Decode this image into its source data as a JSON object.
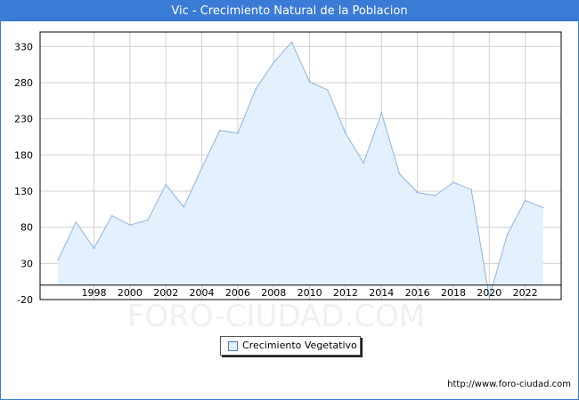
{
  "title": "Vic - Crecimiento Natural de la Poblacion",
  "watermark": "FORO-CIUDAD.COM",
  "source_url": "http://www.foro-ciudad.com",
  "colors": {
    "title_bg": "#3a7bd5",
    "area_fill": "#e3f0fd",
    "line": "#8fb4e3",
    "grid": "#d0d0d0"
  },
  "chart_data": {
    "type": "area",
    "title": "Vic - Crecimiento Natural de la Poblacion",
    "xlabel": "",
    "ylabel": "",
    "xlim": [
      1995,
      2024
    ],
    "ylim": [
      -20,
      350
    ],
    "y_ticks": [
      -20,
      30,
      80,
      130,
      180,
      230,
      280,
      330
    ],
    "x_ticks": [
      1998,
      2000,
      2002,
      2004,
      2006,
      2008,
      2010,
      2012,
      2014,
      2016,
      2018,
      2020,
      2022
    ],
    "grid": true,
    "legend_position": "bottom-center",
    "series": [
      {
        "name": "Crecimiento Vegetativo",
        "x": [
          1996,
          1997,
          1998,
          1999,
          2000,
          2001,
          2002,
          2003,
          2004,
          2005,
          2006,
          2007,
          2008,
          2009,
          2010,
          2011,
          2012,
          2013,
          2014,
          2015,
          2016,
          2017,
          2018,
          2019,
          2020,
          2021,
          2022,
          2023
        ],
        "values": [
          35,
          87,
          51,
          96,
          83,
          90,
          139,
          108,
          162,
          214,
          210,
          271,
          308,
          336,
          281,
          270,
          210,
          169,
          238,
          154,
          128,
          124,
          142,
          132,
          -17,
          70,
          117,
          107
        ]
      }
    ]
  }
}
